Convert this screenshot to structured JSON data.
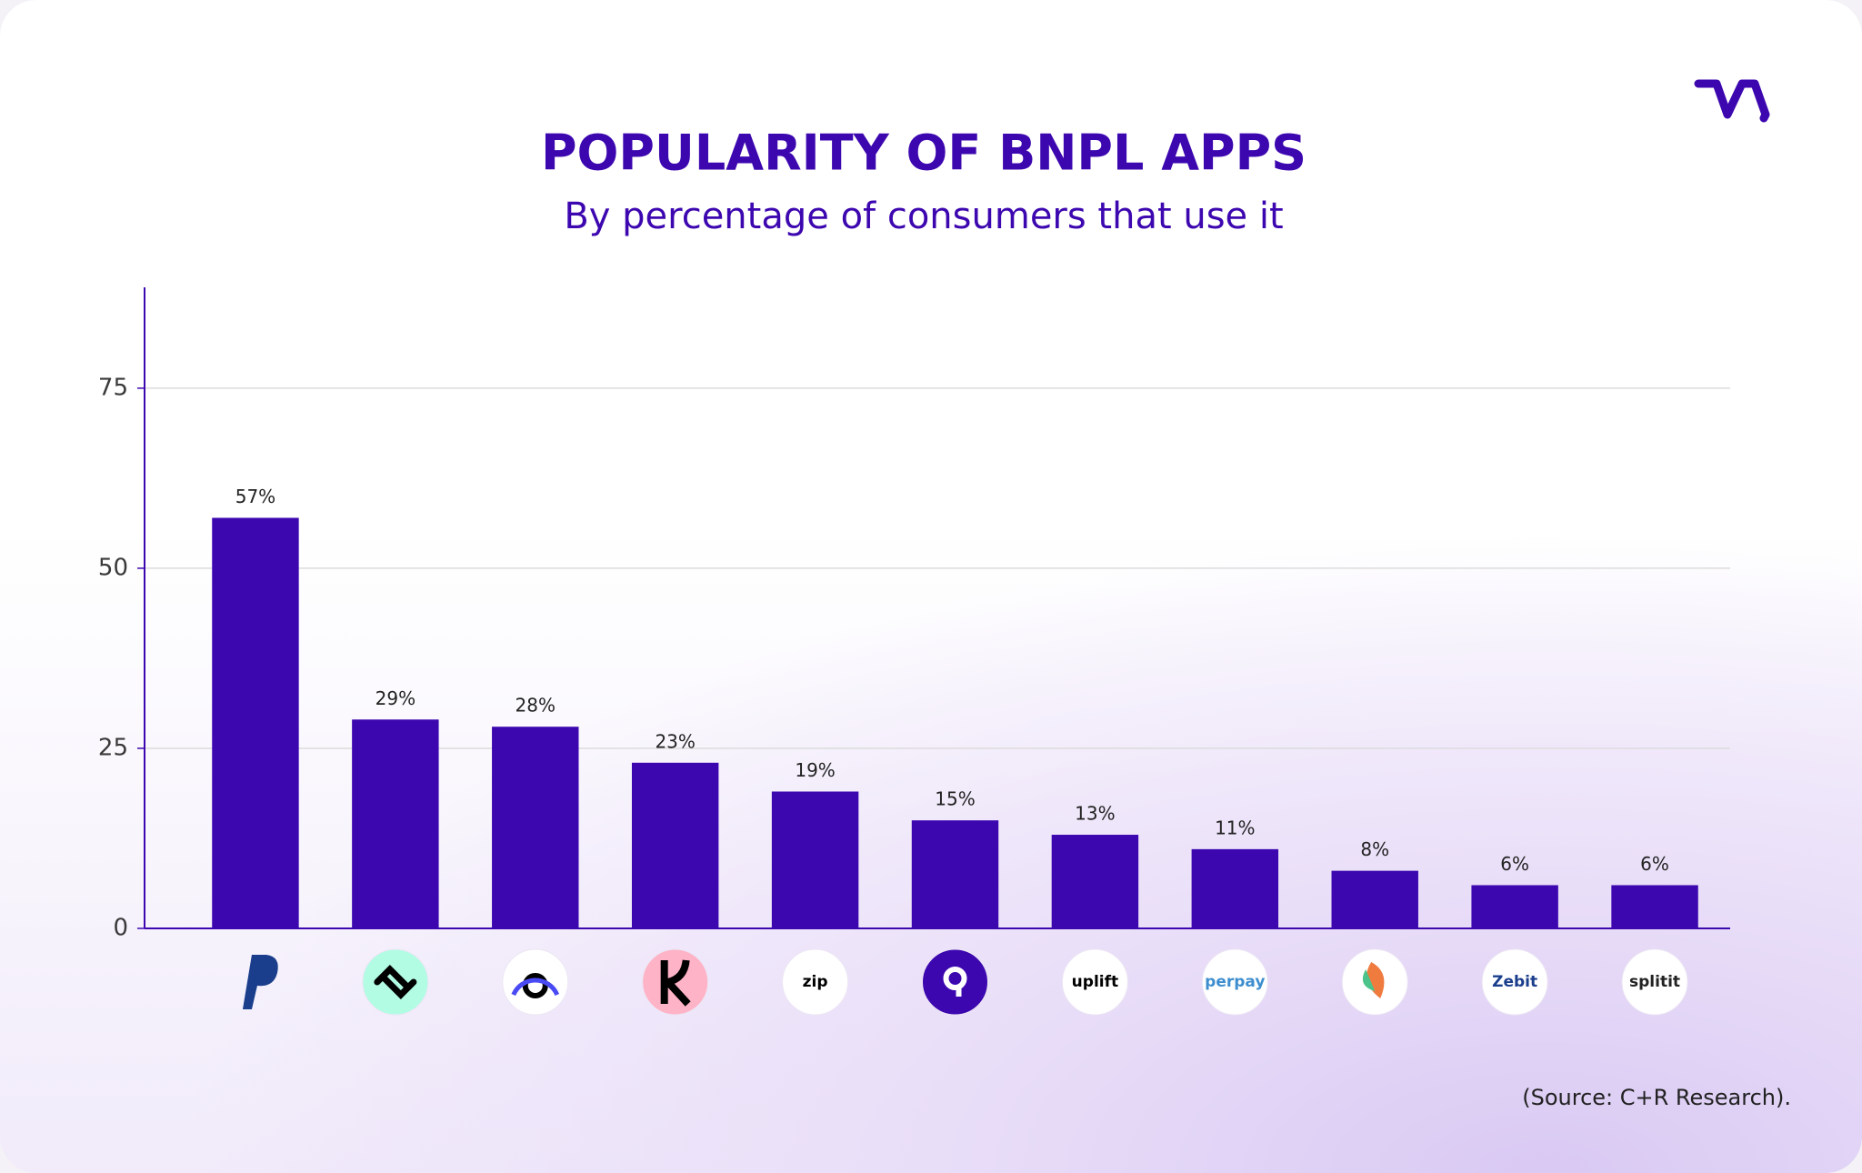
{
  "chart_data": {
    "type": "bar",
    "title": "POPULARITY OF BNPL APPS",
    "subtitle": "By percentage of consumers that use it",
    "categories": [
      null,
      null,
      null,
      null,
      "zip",
      null,
      "uplift",
      "perpay",
      null,
      "Zebit",
      "splitit"
    ],
    "values": [
      57,
      29,
      28,
      23,
      19,
      15,
      13,
      11,
      8,
      6,
      6
    ],
    "value_labels": [
      "57%",
      "29%",
      "28%",
      "23%",
      "19%",
      "15%",
      "13%",
      "11%",
      "8%",
      "6%",
      "6%"
    ],
    "color": "#3d07b0",
    "ylim": [
      0,
      89
    ],
    "yticks": [
      0,
      25,
      50,
      75
    ],
    "grid": true,
    "source": "(Source: C+R Research)."
  }
}
